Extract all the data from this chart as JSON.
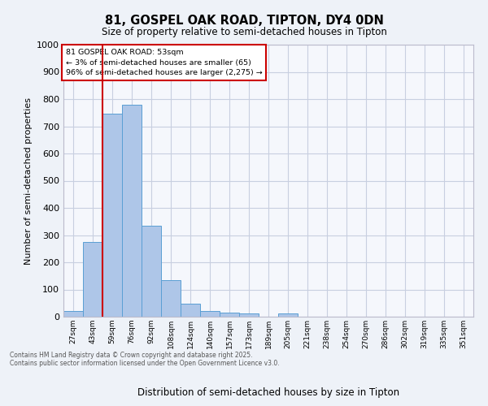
{
  "title_line1": "81, GOSPEL OAK ROAD, TIPTON, DY4 0DN",
  "title_line2": "Size of property relative to semi-detached houses in Tipton",
  "xlabel": "Distribution of semi-detached houses by size in Tipton",
  "ylabel": "Number of semi-detached properties",
  "categories": [
    "27sqm",
    "43sqm",
    "59sqm",
    "76sqm",
    "92sqm",
    "108sqm",
    "124sqm",
    "140sqm",
    "157sqm",
    "173sqm",
    "189sqm",
    "205sqm",
    "221sqm",
    "238sqm",
    "254sqm",
    "270sqm",
    "286sqm",
    "302sqm",
    "319sqm",
    "335sqm",
    "351sqm"
  ],
  "values": [
    22,
    275,
    745,
    778,
    335,
    133,
    48,
    22,
    14,
    12,
    0,
    12,
    0,
    0,
    0,
    0,
    0,
    0,
    0,
    0,
    0
  ],
  "bar_color": "#aec6e8",
  "bar_edge_color": "#5a9fd4",
  "vline_color": "#cc0000",
  "annotation_title": "81 GOSPEL OAK ROAD: 53sqm",
  "annotation_line2": "← 3% of semi-detached houses are smaller (65)",
  "annotation_line3": "96% of semi-detached houses are larger (2,275) →",
  "annotation_box_color": "#cc0000",
  "ylim": [
    0,
    1000
  ],
  "yticks": [
    0,
    100,
    200,
    300,
    400,
    500,
    600,
    700,
    800,
    900,
    1000
  ],
  "footnote_line1": "Contains HM Land Registry data © Crown copyright and database right 2025.",
  "footnote_line2": "Contains public sector information licensed under the Open Government Licence v3.0.",
  "bg_color": "#eef2f8",
  "plot_bg_color": "#f5f7fc",
  "grid_color": "#c8cfe0"
}
